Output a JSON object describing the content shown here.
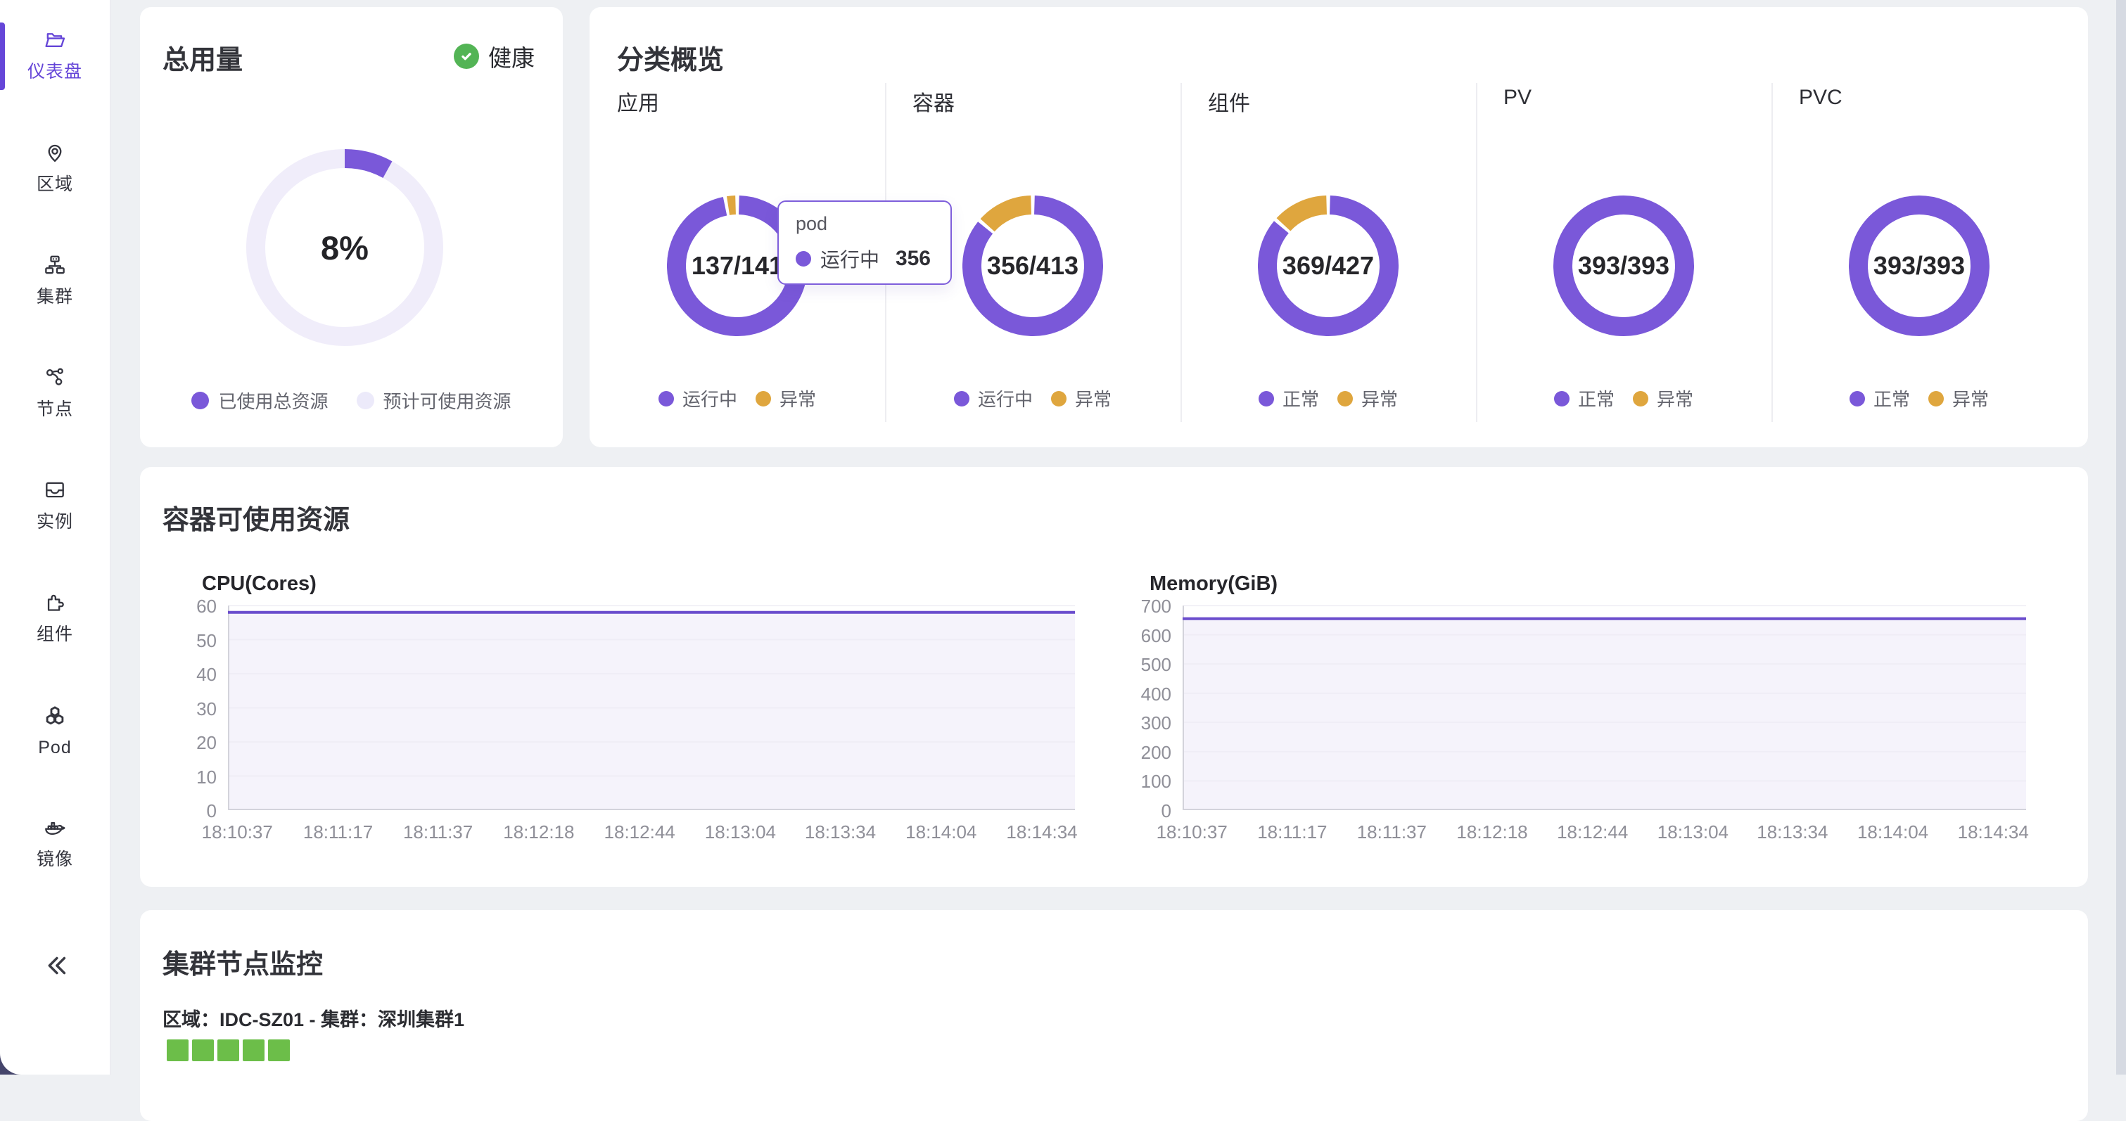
{
  "colors": {
    "accent_purple": "#7a58d9",
    "line_purple": "#6a4ccd",
    "warn_yellow": "#dfa63e",
    "health_green": "#53b455",
    "node_green": "#6cbe49",
    "donut_track": "#f0edfa",
    "chart_fill": "#f5f3fb",
    "sidebar_active": "#6546d8"
  },
  "sidebar": {
    "items": [
      {
        "label": "仪表盘",
        "icon": "dashboard-folder-icon",
        "active": true
      },
      {
        "label": "区域",
        "icon": "region-pin-icon",
        "active": false
      },
      {
        "label": "集群",
        "icon": "cluster-sitemap-icon",
        "active": false
      },
      {
        "label": "节点",
        "icon": "node-links-icon",
        "active": false
      },
      {
        "label": "实例",
        "icon": "instance-inbox-icon",
        "active": false
      },
      {
        "label": "组件",
        "icon": "component-puzzle-icon",
        "active": false
      },
      {
        "label": "Pod",
        "icon": "pod-hexagons-icon",
        "active": false
      },
      {
        "label": "镜像",
        "icon": "image-whale-icon",
        "active": false
      }
    ],
    "collapse_icon": "double-chevron-left"
  },
  "usage_card": {
    "title": "总用量",
    "status_label": "健康",
    "center_value": "8%",
    "used_percent": 8,
    "legend": [
      {
        "label": "已使用总资源",
        "color": "purple"
      },
      {
        "label": "预计可使用资源",
        "color": "track"
      }
    ]
  },
  "overview_card": {
    "title": "分类概览",
    "columns": [
      {
        "name": "应用",
        "value": "137/141",
        "ok": 137,
        "total": 141,
        "legend": [
          "运行中",
          "异常"
        ]
      },
      {
        "name": "容器",
        "value": "356/413",
        "ok": 356,
        "total": 413,
        "legend": [
          "运行中",
          "异常"
        ]
      },
      {
        "name": "组件",
        "value": "369/427",
        "ok": 369,
        "total": 427,
        "legend": [
          "正常",
          "异常"
        ]
      },
      {
        "name": "PV",
        "value": "393/393",
        "ok": 393,
        "total": 393,
        "legend": [
          "正常",
          "异常"
        ]
      },
      {
        "name": "PVC",
        "value": "393/393",
        "ok": 393,
        "total": 393,
        "legend": [
          "正常",
          "异常"
        ]
      }
    ],
    "tooltip": {
      "title": "pod",
      "item_label": "运行中",
      "item_value": "356"
    }
  },
  "resource_card": {
    "title": "容器可使用资源"
  },
  "chart_data": [
    {
      "type": "area",
      "title": "CPU(Cores)",
      "x": [
        "18:10:37",
        "18:11:17",
        "18:11:37",
        "18:12:18",
        "18:12:44",
        "18:13:04",
        "18:13:34",
        "18:14:04",
        "18:14:34"
      ],
      "series": [
        {
          "name": "CPU",
          "values": [
            58,
            58,
            58,
            58,
            58,
            58,
            58,
            58,
            58
          ]
        }
      ],
      "ylim": [
        0,
        60
      ],
      "yticks": [
        60,
        50,
        40,
        30,
        20,
        10,
        0
      ],
      "grid": true,
      "legend_position": "none"
    },
    {
      "type": "area",
      "title": "Memory(GiB)",
      "x": [
        "18:10:37",
        "18:11:17",
        "18:11:37",
        "18:12:18",
        "18:12:44",
        "18:13:04",
        "18:13:34",
        "18:14:04",
        "18:14:34"
      ],
      "series": [
        {
          "name": "Memory",
          "values": [
            655,
            655,
            655,
            655,
            655,
            655,
            655,
            655,
            655
          ]
        }
      ],
      "ylim": [
        0,
        700
      ],
      "yticks": [
        700,
        600,
        500,
        400,
        300,
        200,
        100,
        0
      ],
      "grid": true,
      "legend_position": "none"
    }
  ],
  "cluster_card": {
    "title": "集群节点监控",
    "subtitle": "区域：IDC-SZ01 - 集群：深圳集群1",
    "node_square_count": 5
  }
}
